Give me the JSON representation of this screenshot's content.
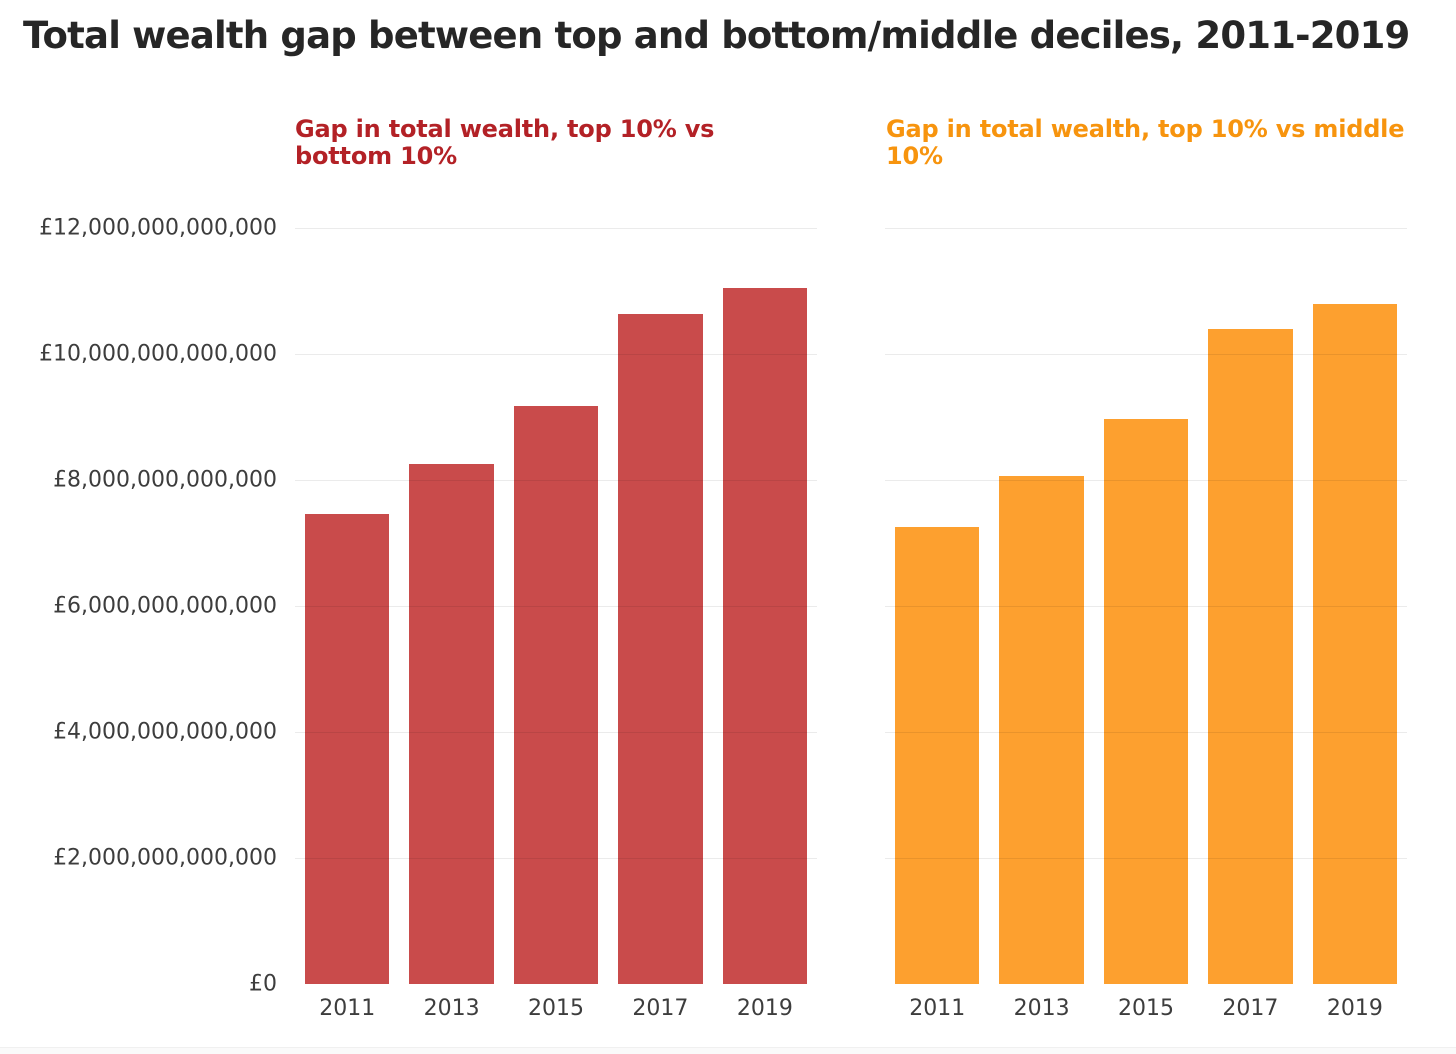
{
  "page": {
    "title": "Total wealth gap between top and bottom/middle deciles, 2011-2019"
  },
  "colors": {
    "title_text": "#262626",
    "axis_text": "#3d3d3d",
    "gridline": "#ebebeb",
    "red_bar": "#c94b4b",
    "red_heading": "#b32126",
    "orange_bar": "#fda02f",
    "orange_heading": "#f7940e"
  },
  "chart_data": [
    {
      "type": "bar",
      "title": "Gap in total wealth, top 10% vs bottom 10%",
      "categories": [
        "2011",
        "2013",
        "2015",
        "2017",
        "2019"
      ],
      "values": [
        7460000000000,
        8260000000000,
        9180000000000,
        10630000000000,
        11040000000000
      ],
      "bar_color": "#c94b4b",
      "title_color": "#b32126",
      "xlabel": "",
      "ylabel": "",
      "ylim": [
        0,
        12000000000000
      ],
      "grid_step": 2000000000000,
      "grid": true,
      "legend": "none",
      "y_tick_labels": [
        "£12,000,000,000,000",
        "£10,000,000,000,000",
        "£8,000,000,000,000",
        "£6,000,000,000,000",
        "£4,000,000,000,000",
        "£2,000,000,000,000",
        "£0"
      ],
      "show_y_labels": true
    },
    {
      "type": "bar",
      "title": "Gap in total wealth, top 10% vs middle 10%",
      "categories": [
        "2011",
        "2013",
        "2015",
        "2017",
        "2019"
      ],
      "values": [
        7260000000000,
        8070000000000,
        8970000000000,
        10390000000000,
        10790000000000
      ],
      "bar_color": "#fda02f",
      "title_color": "#f7940e",
      "xlabel": "",
      "ylabel": "",
      "ylim": [
        0,
        12000000000000
      ],
      "grid_step": 2000000000000,
      "grid": true,
      "legend": "none",
      "y_tick_labels": [],
      "show_y_labels": false
    }
  ]
}
